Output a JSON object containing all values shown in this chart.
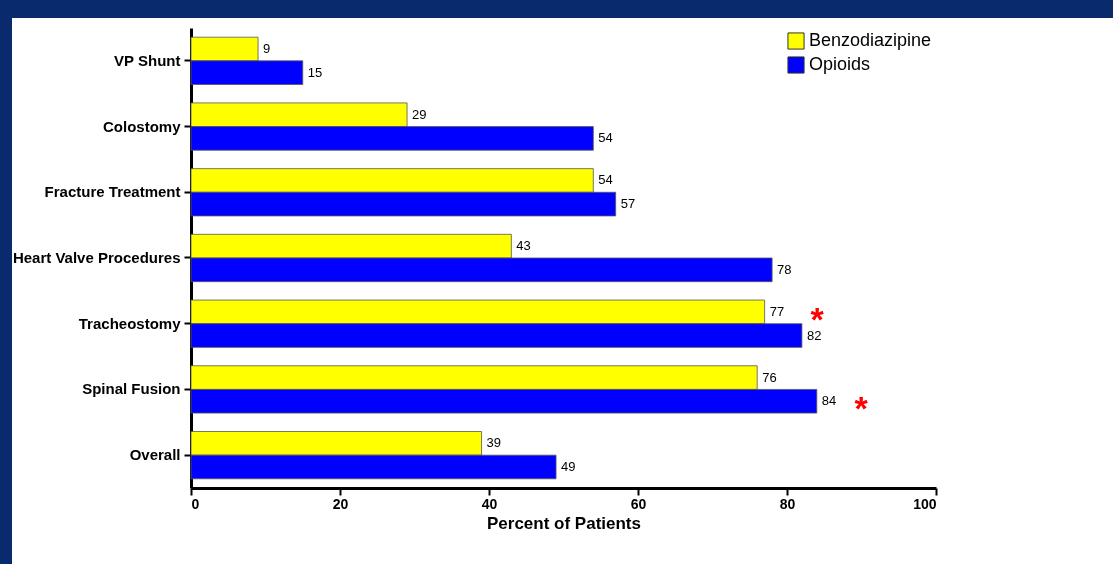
{
  "chart_data": {
    "type": "bar",
    "orientation": "horizontal",
    "xlabel": "Percent of Patients",
    "categories": [
      "VP Shunt",
      "Colostomy",
      "Fracture Treatment",
      "Heart Valve Procedures",
      "Tracheostomy",
      "Spinal Fusion",
      "Overall"
    ],
    "series": [
      {
        "name": "Benzodiazipine",
        "color": "#ffff00",
        "values": [
          9,
          29,
          54,
          43,
          77,
          76,
          39
        ]
      },
      {
        "name": "Opioids",
        "color": "#0000ff",
        "values": [
          15,
          54,
          57,
          78,
          82,
          84,
          49
        ]
      }
    ],
    "xlim": [
      0,
      100
    ],
    "xticks": [
      0,
      20,
      40,
      60,
      80,
      100
    ],
    "data_labels": true,
    "legend": "top right",
    "grid": false,
    "annotations": [
      "*",
      "*"
    ]
  }
}
